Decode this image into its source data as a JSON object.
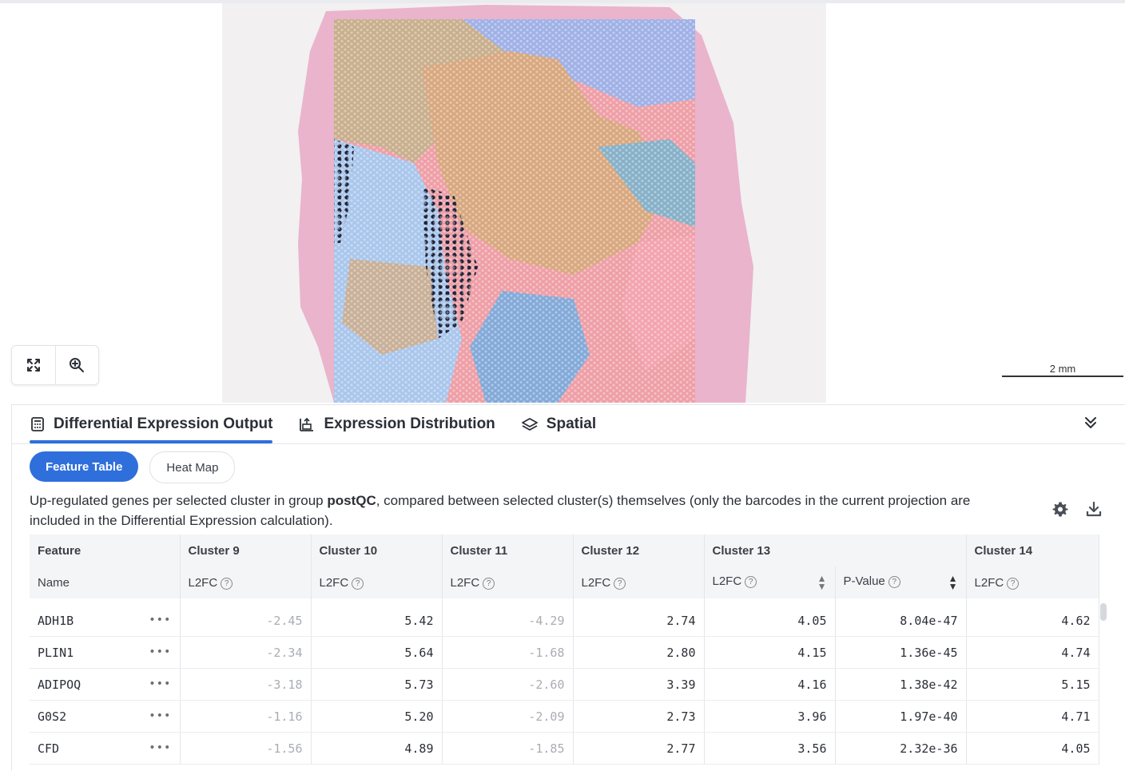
{
  "viewer": {
    "controls": [
      {
        "name": "fit-screen",
        "icon": "expand-arrows-icon"
      },
      {
        "name": "zoom",
        "icon": "zoom-in-icon"
      }
    ],
    "scalebar_label": "2 mm"
  },
  "tabs": [
    {
      "label": "Differential Expression Output",
      "icon": "calculator-icon",
      "active": true
    },
    {
      "label": "Expression Distribution",
      "icon": "chart-upload-icon",
      "active": false
    },
    {
      "label": "Spatial",
      "icon": "layers-icon",
      "active": false
    }
  ],
  "collapse_icon": "double-chevron-down-icon",
  "subtabs": [
    {
      "label": "Feature Table",
      "active": true
    },
    {
      "label": "Heat Map",
      "active": false
    }
  ],
  "description": {
    "prefix": "Up-regulated genes per selected cluster in group ",
    "group": "postQC",
    "suffix": ", compared between selected cluster(s) themselves (only the barcodes in the current projection are included in the Differential Expression calculation)."
  },
  "toolbar": {
    "settings_icon": "gear-icon",
    "download_icon": "download-icon"
  },
  "table": {
    "group_headers": [
      "Feature",
      "Cluster 9",
      "Cluster 10",
      "Cluster 11",
      "Cluster 12",
      "Cluster 13",
      "",
      "Cluster 14"
    ],
    "sub_headers": [
      "Name",
      "L2FC",
      "L2FC",
      "L2FC",
      "L2FC",
      "L2FC",
      "P-Value",
      "L2FC"
    ],
    "help_glyph": "?",
    "rows": [
      {
        "gene": "ADH1B",
        "c9": "-2.45",
        "c10": "5.42",
        "c11": "-4.29",
        "c12": "2.74",
        "c13": "4.05",
        "p13": "8.04e-47",
        "c14": "4.62"
      },
      {
        "gene": "PLIN1",
        "c9": "-2.34",
        "c10": "5.64",
        "c11": "-1.68",
        "c12": "2.80",
        "c13": "4.15",
        "p13": "1.36e-45",
        "c14": "4.74"
      },
      {
        "gene": "ADIPOQ",
        "c9": "-3.18",
        "c10": "5.73",
        "c11": "-2.60",
        "c12": "3.39",
        "c13": "4.16",
        "p13": "1.38e-42",
        "c14": "5.15"
      },
      {
        "gene": "G0S2",
        "c9": "-1.16",
        "c10": "5.20",
        "c11": "-2.09",
        "c12": "2.73",
        "c13": "3.96",
        "p13": "1.97e-40",
        "c14": "4.71"
      },
      {
        "gene": "CFD",
        "c9": "-1.56",
        "c10": "4.89",
        "c11": "-1.85",
        "c12": "2.77",
        "c13": "3.56",
        "p13": "2.32e-36",
        "c14": "4.05"
      }
    ],
    "row_menu_glyph": "•••"
  },
  "colors": {
    "accent": "#2f6fdc",
    "tissue_pink": "#e7a9c4",
    "negative_text": "#a9adb3"
  }
}
